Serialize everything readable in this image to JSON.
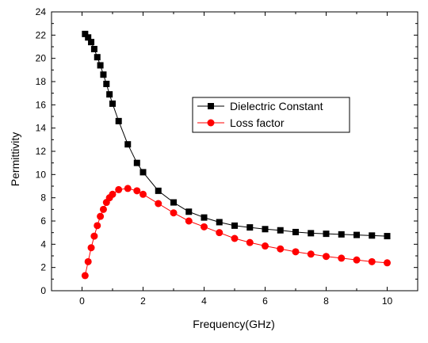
{
  "chart_data": {
    "type": "line",
    "xlabel": "Frequency(GHz)",
    "ylabel": "Permittivity",
    "xlim": [
      -1,
      11
    ],
    "ylim": [
      0,
      24
    ],
    "xticks": [
      0,
      2,
      4,
      6,
      8,
      10
    ],
    "yticks": [
      0,
      2,
      4,
      6,
      8,
      10,
      12,
      14,
      16,
      18,
      20,
      22,
      24
    ],
    "grid": false,
    "legend_position": "center-right",
    "series": [
      {
        "name": "Dielectric Constant",
        "color": "#000000",
        "marker": "square",
        "x": [
          0.1,
          0.2,
          0.3,
          0.4,
          0.5,
          0.6,
          0.7,
          0.8,
          0.9,
          1.0,
          1.2,
          1.5,
          1.8,
          2.0,
          2.5,
          3.0,
          3.5,
          4.0,
          4.5,
          5.0,
          5.5,
          6.0,
          6.5,
          7.0,
          7.5,
          8.0,
          8.5,
          9.0,
          9.5,
          10.0
        ],
        "y": [
          22.1,
          21.8,
          21.4,
          20.8,
          20.1,
          19.4,
          18.6,
          17.8,
          16.9,
          16.1,
          14.6,
          12.6,
          11.0,
          10.2,
          8.6,
          7.6,
          6.8,
          6.3,
          5.9,
          5.6,
          5.45,
          5.3,
          5.2,
          5.05,
          4.95,
          4.9,
          4.85,
          4.8,
          4.75,
          4.7
        ]
      },
      {
        "name": "Loss factor",
        "color": "#ff0000",
        "marker": "circle",
        "x": [
          0.1,
          0.2,
          0.3,
          0.4,
          0.5,
          0.6,
          0.7,
          0.8,
          0.9,
          1.0,
          1.2,
          1.5,
          1.8,
          2.0,
          2.5,
          3.0,
          3.5,
          4.0,
          4.5,
          5.0,
          5.5,
          6.0,
          6.5,
          7.0,
          7.5,
          8.0,
          8.5,
          9.0,
          9.5,
          10.0
        ],
        "y": [
          1.3,
          2.5,
          3.7,
          4.7,
          5.6,
          6.4,
          7.0,
          7.6,
          8.0,
          8.3,
          8.7,
          8.8,
          8.6,
          8.3,
          7.5,
          6.7,
          6.0,
          5.5,
          5.0,
          4.5,
          4.15,
          3.85,
          3.6,
          3.35,
          3.15,
          2.95,
          2.8,
          2.65,
          2.5,
          2.4
        ]
      }
    ]
  }
}
